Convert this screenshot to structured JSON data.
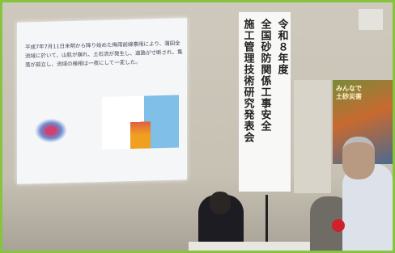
{
  "slide": {
    "body": "平成7年7月11日未明から降り始めた梅雨前線豪雨により、蒲田全流域に於いて、山肌が崩れ、土石流が発生し、道路が寸断され、集落が孤立し、流域の様相は一夜にして一変した。"
  },
  "banner": {
    "lines": [
      "令和８年度",
      "全国砂防関係工事安全",
      "施工管理技術研究発表会"
    ]
  },
  "poster": {
    "title": "みんなで 土砂災害"
  }
}
